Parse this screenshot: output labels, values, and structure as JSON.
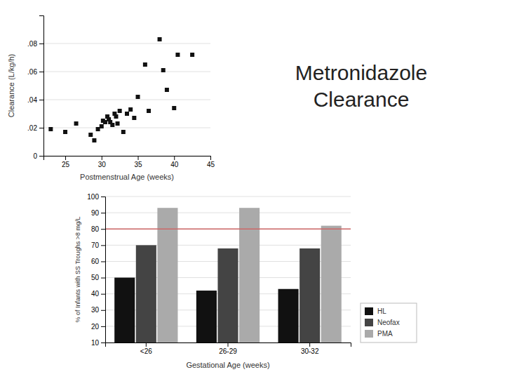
{
  "chart_data": [
    {
      "type": "scatter",
      "title": "Metronidazole\nClearance",
      "title_color": "#222222",
      "x": [
        23,
        25,
        26.5,
        28.5,
        29,
        29.5,
        30,
        30.2,
        30.5,
        30.8,
        31,
        31.2,
        31.5,
        31.8,
        32,
        32.2,
        32.5,
        33,
        33.5,
        34,
        34.5,
        35,
        36,
        36.5,
        38,
        38.5,
        39,
        40,
        40.5,
        42.5
      ],
      "y": [
        0.019,
        0.017,
        0.023,
        0.015,
        0.011,
        0.019,
        0.021,
        0.025,
        0.024,
        0.028,
        0.026,
        0.024,
        0.022,
        0.03,
        0.028,
        0.023,
        0.032,
        0.017,
        0.03,
        0.033,
        0.027,
        0.042,
        0.065,
        0.032,
        0.083,
        0.061,
        0.047,
        0.034,
        0.072,
        0.072
      ],
      "xlabel": "Postmenstrual Age (weeks)",
      "ylabel": "Clearance (L/kg/h)",
      "xlim": [
        22,
        45
      ],
      "ylim": [
        0,
        0.1
      ],
      "xticks": [
        25,
        30,
        35,
        40,
        45
      ],
      "yticks": [
        0,
        {
          "value": 0.02,
          "label": ".02"
        },
        {
          "value": 0.04,
          "label": ".04"
        },
        {
          "value": 0.06,
          "label": ".06"
        },
        {
          "value": 0.08,
          "label": ".08"
        }
      ],
      "color": "#111111",
      "marker": "square",
      "grid": true
    },
    {
      "type": "bar",
      "categories": [
        "<26",
        "26-29",
        "30-32"
      ],
      "series": [
        {
          "name": "HL",
          "color": "#111111",
          "values": [
            50,
            42,
            43
          ]
        },
        {
          "name": "Neofax",
          "color": "#444444",
          "values": [
            70,
            68,
            68
          ]
        },
        {
          "name": "PMA",
          "color": "#aaaaaa",
          "values": [
            93,
            93,
            82
          ]
        }
      ],
      "hline": {
        "value": 80,
        "color": "#cc6666"
      },
      "xlabel": "Gestational Age (weeks)",
      "ylabel": "% of Infants with SS Troughs >8 mg/L",
      "ylim": [
        10,
        100
      ],
      "yticks": [
        10,
        20,
        30,
        40,
        50,
        60,
        70,
        80,
        90,
        100
      ],
      "grid": true,
      "legend": "lower right"
    }
  ]
}
